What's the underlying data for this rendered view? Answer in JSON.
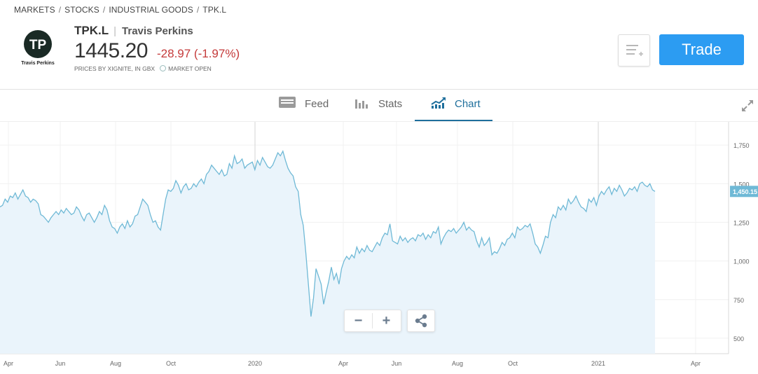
{
  "breadcrumb": [
    "MARKETS",
    "STOCKS",
    "INDUSTRIAL GOODS",
    "TPK.L"
  ],
  "logo": {
    "caption": "Travis Perkins",
    "initials": "TP"
  },
  "stock": {
    "ticker": "TPK.L",
    "name": "Travis Perkins",
    "price": "1445.20",
    "change": "-28.97 (-1.97%)",
    "source": "PRICES BY XIGNITE, IN GBX",
    "status": "MARKET OPEN"
  },
  "actions": {
    "trade_label": "Trade"
  },
  "tabs": [
    {
      "label": "Feed",
      "icon": "feed-icon",
      "active": false
    },
    {
      "label": "Stats",
      "icon": "bar-chart-icon",
      "active": false
    },
    {
      "label": "Chart",
      "icon": "trend-chart-icon",
      "active": true
    }
  ],
  "colors": {
    "accent": "#2c9cf2",
    "negative": "#c53b3b",
    "tab_active": "#1f6f9c",
    "line": "#6fb9d6",
    "fill": "#eaf4fb"
  },
  "chart_data": {
    "type": "area",
    "x_ticks": [
      "Apr",
      "Jun",
      "Aug",
      "Oct",
      "2020",
      "Apr",
      "Jun",
      "Aug",
      "Oct",
      "2021",
      "Apr"
    ],
    "y_ticks": [
      "1,750",
      "1,500",
      "1,250",
      "1,000",
      "750",
      "500"
    ],
    "ylim": [
      400,
      1900
    ],
    "current_label": "1,450.15",
    "series": [
      {
        "values": [
          1350,
          1360,
          1400,
          1380,
          1420,
          1410,
          1440,
          1400,
          1430,
          1460,
          1420,
          1410,
          1380,
          1400,
          1390,
          1370,
          1300,
          1290,
          1270,
          1250,
          1280,
          1300,
          1320,
          1300,
          1330,
          1310,
          1340,
          1320,
          1300,
          1310,
          1350,
          1330,
          1290,
          1260,
          1300,
          1310,
          1280,
          1250,
          1280,
          1320,
          1300,
          1360,
          1330,
          1260,
          1220,
          1210,
          1180,
          1220,
          1240,
          1210,
          1260,
          1220,
          1240,
          1290,
          1300,
          1350,
          1400,
          1380,
          1360,
          1300,
          1250,
          1260,
          1220,
          1200,
          1300,
          1400,
          1460,
          1450,
          1470,
          1520,
          1490,
          1440,
          1480,
          1500,
          1460,
          1470,
          1500,
          1480,
          1510,
          1530,
          1500,
          1560,
          1580,
          1620,
          1600,
          1580,
          1560,
          1590,
          1550,
          1560,
          1630,
          1600,
          1680,
          1630,
          1640,
          1660,
          1600,
          1620,
          1630,
          1640,
          1590,
          1650,
          1620,
          1670,
          1640,
          1610,
          1600,
          1620,
          1660,
          1700,
          1680,
          1710,
          1650,
          1600,
          1570,
          1550,
          1480,
          1450,
          1300,
          1230,
          1050,
          850,
          640,
          760,
          950,
          900,
          850,
          720,
          800,
          870,
          960,
          880,
          920,
          850,
          950,
          1000,
          1030,
          1010,
          1040,
          1020,
          1090,
          1050,
          1080,
          1060,
          1100,
          1070,
          1060,
          1090,
          1120,
          1100,
          1150,
          1180,
          1170,
          1240,
          1130,
          1120,
          1110,
          1160,
          1130,
          1150,
          1120,
          1140,
          1150,
          1130,
          1170,
          1160,
          1180,
          1140,
          1170,
          1150,
          1190,
          1180,
          1220,
          1110,
          1150,
          1180,
          1200,
          1190,
          1210,
          1180,
          1200,
          1220,
          1250,
          1200,
          1220,
          1200,
          1190,
          1130,
          1090,
          1150,
          1100,
          1120,
          1150,
          1040,
          1060,
          1050,
          1080,
          1120,
          1100,
          1140,
          1150,
          1180,
          1150,
          1220,
          1200,
          1210,
          1230,
          1220,
          1240,
          1180,
          1110,
          1090,
          1050,
          1100,
          1160,
          1150,
          1250,
          1300,
          1280,
          1350,
          1330,
          1360,
          1330,
          1400,
          1370,
          1390,
          1420,
          1380,
          1350,
          1340,
          1320,
          1400,
          1380,
          1410,
          1360,
          1420,
          1450,
          1430,
          1460,
          1480,
          1430,
          1470,
          1450,
          1490,
          1460,
          1420,
          1440,
          1470,
          1460,
          1480,
          1450,
          1500,
          1510,
          1490,
          1480,
          1500,
          1460,
          1450
        ]
      }
    ]
  }
}
